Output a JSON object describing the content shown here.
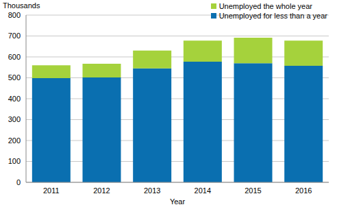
{
  "chart_data": {
    "type": "bar",
    "x_label": "Year",
    "y_label": "Thousands",
    "categories": [
      "2011",
      "2012",
      "2013",
      "2014",
      "2015",
      "2016"
    ],
    "series": [
      {
        "name": "Unemployed for less than a year",
        "color": "#0a6fb0",
        "values": [
          498,
          502,
          545,
          577,
          570,
          557
        ]
      },
      {
        "name": "Unemployed the whole year",
        "color": "#a5d23c",
        "values": [
          62,
          65,
          85,
          101,
          122,
          121
        ]
      }
    ],
    "stacked": true,
    "ylim": [
      0,
      800
    ],
    "yticks": [
      0,
      100,
      200,
      300,
      400,
      500,
      600,
      700,
      800
    ],
    "grid": true,
    "legend": "top-right"
  }
}
